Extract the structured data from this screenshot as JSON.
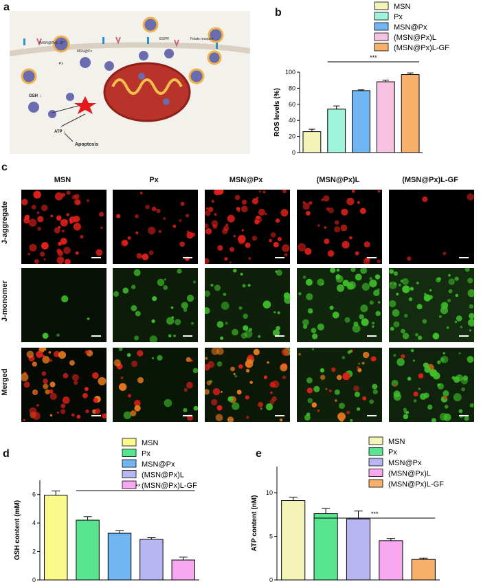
{
  "panels": {
    "a": "a",
    "b": "b",
    "c": "c",
    "d": "d",
    "e": "e"
  },
  "schematic": {
    "labels": [
      "(MSN@Px)L-GF",
      "EGFR",
      "Folate receptor",
      "MSN@Px",
      "Px",
      "GSH ↓",
      "ATP ↓",
      "Apoptosis"
    ],
    "colors": {
      "membrane": "#e8e2d8",
      "mito": "#c0392b",
      "star": "#e31a1c",
      "bg": "#f3f1ec"
    }
  },
  "panel_c": {
    "columns": [
      "MSN",
      "Px",
      "MSN@Px",
      "(MSN@Px)L",
      "(MSN@Px)L-GF"
    ],
    "rows": [
      "J-aggregate",
      "J-monomer",
      "Merged"
    ],
    "intensity": {
      "red": [
        0.95,
        0.45,
        0.9,
        0.55,
        0.08
      ],
      "green": [
        0.08,
        0.45,
        0.55,
        0.8,
        0.95
      ]
    },
    "colors": {
      "red": "#e0201a",
      "green": "#3fbf2a",
      "orange": "#e8781e"
    }
  },
  "chart_data": [
    {
      "panel": "b",
      "type": "bar",
      "categories": [
        "MSN",
        "Px",
        "MSN@Px",
        "(MSN@Px)L",
        "(MSN@Px)L-GF"
      ],
      "values": [
        26,
        54,
        77,
        88,
        97
      ],
      "errors": [
        3,
        4,
        1,
        2,
        2
      ],
      "colors": [
        "#f4f4b8",
        "#9ff5dc",
        "#6fb6f2",
        "#f7c2e1",
        "#f8b06a"
      ],
      "ylabel": "ROS levels (%)",
      "ylim": [
        0,
        100
      ],
      "yticks": [
        "0",
        "20",
        "40",
        "60",
        "80",
        "100"
      ],
      "legend": "top-right",
      "significance": "***"
    },
    {
      "panel": "d",
      "type": "bar",
      "categories": [
        "MSN",
        "Px",
        "MSN@Px",
        "(MSN@Px)L",
        "(MSN@Px)L-GF"
      ],
      "values": [
        5.95,
        4.2,
        3.28,
        2.85,
        1.4
      ],
      "errors": [
        0.3,
        0.25,
        0.18,
        0.12,
        0.2
      ],
      "colors": [
        "#fbf98c",
        "#59e58f",
        "#6fb6f2",
        "#b7b6f2",
        "#f7a8f0"
      ],
      "ylabel": "GSH content (mM)",
      "ylim": [
        0,
        7
      ],
      "yticks": [
        "0",
        "2",
        "4",
        "6"
      ],
      "legend": "top-right",
      "significance": "****"
    },
    {
      "panel": "e",
      "type": "bar",
      "categories": [
        "MSN",
        "Px",
        "MSN@Px",
        "(MSN@Px)L",
        "(MSN@Px)L-GF"
      ],
      "values": [
        9.1,
        7.6,
        7.0,
        4.5,
        2.35
      ],
      "errors": [
        0.4,
        0.6,
        0.9,
        0.25,
        0.15
      ],
      "colors": [
        "#f4f4b8",
        "#59e58f",
        "#b7b6f2",
        "#f7a8f0",
        "#f8b06a"
      ],
      "ylabel": "ATP content (nM)",
      "ylim": [
        0,
        13
      ],
      "yticks": [
        "0",
        "5",
        "10"
      ],
      "legend": "top-right",
      "significance": "***"
    }
  ]
}
